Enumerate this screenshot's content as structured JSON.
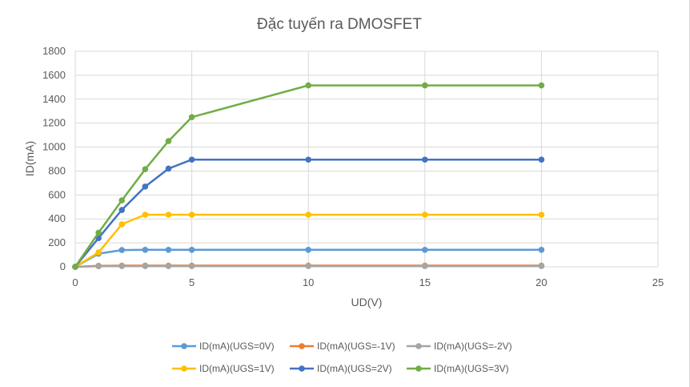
{
  "chart_data": {
    "type": "line",
    "title": "Đặc tuyến ra DMOSFET",
    "xlabel": "UD(V)",
    "ylabel": "ID(mA)",
    "xlim": [
      0,
      25
    ],
    "ylim": [
      0,
      1800
    ],
    "xticks": [
      0,
      5,
      10,
      15,
      20,
      25
    ],
    "yticks": [
      0,
      200,
      400,
      600,
      800,
      1000,
      1200,
      1400,
      1600,
      1800
    ],
    "grid": true,
    "legend": "bottom",
    "x": [
      0,
      1,
      2,
      3,
      4,
      5,
      10,
      15,
      20
    ],
    "series": [
      {
        "name": "ID(mA)(UGS=0V)",
        "color": "#5b9bd5",
        "values": [
          0,
          110,
          140,
          142,
          142,
          142,
          142,
          142,
          142
        ]
      },
      {
        "name": "ID(mA)(UGS=-1V)",
        "color": "#ed7d31",
        "values": [
          0,
          8,
          10,
          10,
          10,
          10,
          10,
          10,
          10
        ]
      },
      {
        "name": "ID(mA)(UGS=-2V)",
        "color": "#a5a5a5",
        "values": [
          0,
          5,
          6,
          6,
          6,
          6,
          6,
          6,
          6
        ]
      },
      {
        "name": "ID(mA)(UGS=1V)",
        "color": "#ffc000",
        "values": [
          0,
          120,
          355,
          435,
          435,
          435,
          435,
          435,
          435
        ]
      },
      {
        "name": "ID(mA)(UGS=2V)",
        "color": "#4472c4",
        "values": [
          0,
          240,
          475,
          670,
          820,
          895,
          895,
          895,
          895
        ]
      },
      {
        "name": "ID(mA)(UGS=3V)",
        "color": "#70ad47",
        "values": [
          0,
          285,
          555,
          815,
          1050,
          1250,
          1515,
          1515,
          1515
        ]
      }
    ]
  }
}
